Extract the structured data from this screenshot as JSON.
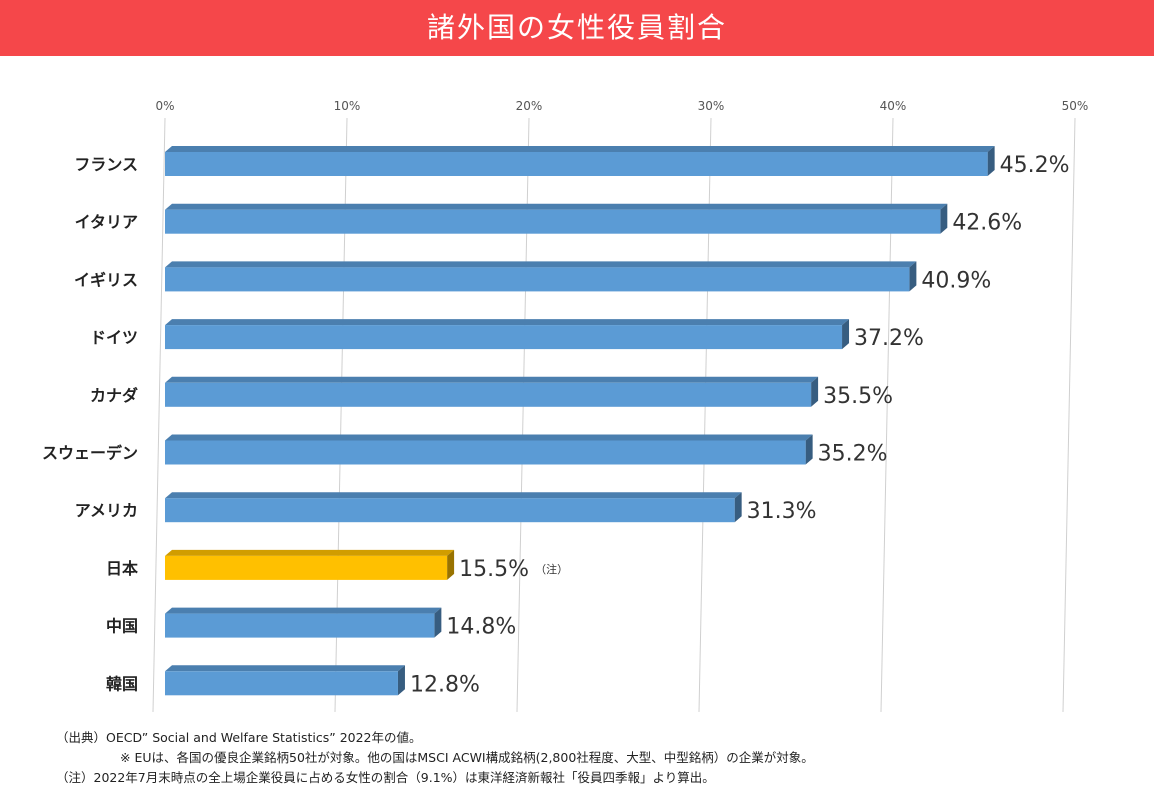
{
  "title": "諸外国の女性役員割合",
  "chart_data": {
    "type": "bar",
    "orientation": "horizontal",
    "title": "諸外国の女性役員割合",
    "categories": [
      "フランス",
      "イタリア",
      "イギリス",
      "ドイツ",
      "カナダ",
      "スウェーデン",
      "アメリカ",
      "日本",
      "中国",
      "韓国"
    ],
    "values": [
      45.2,
      42.6,
      40.9,
      37.2,
      35.5,
      35.2,
      31.3,
      15.5,
      14.8,
      12.8
    ],
    "value_labels": [
      "45.2%",
      "42.6%",
      "40.9%",
      "37.2%",
      "35.5%",
      "35.2%",
      "31.3%",
      "15.5%",
      "14.8%",
      "12.8%"
    ],
    "label_notes": [
      "",
      "",
      "",
      "",
      "",
      "",
      "",
      "（注）",
      "",
      ""
    ],
    "highlight_index": 7,
    "xlim": [
      0,
      50
    ],
    "xticks": [
      0,
      10,
      20,
      30,
      40,
      50
    ],
    "xtick_labels": [
      "0%",
      "10%",
      "20%",
      "30%",
      "40%",
      "50%"
    ],
    "x_axis_position": "top",
    "grid": true,
    "colors": {
      "bar": "#5b9bd5",
      "highlight": "#ffc000",
      "title_bar": "#f5474a",
      "grid": "#d0d0d0"
    }
  },
  "notes": {
    "source": "（出典）OECD” Social and Welfare Statistics” 2022年の値。",
    "eu_note": "※ EUは、各国の優良企業銘柄50社が対象。他の国はMSCI ACWI構成銘柄(2,800社程度、大型、中型銘柄）の企業が対象。",
    "footnote": "（注）2022年7月末時点の全上場企業役員に占める女性の割合（9.1%）は東洋経済新報社「役員四季報」より算出。"
  }
}
